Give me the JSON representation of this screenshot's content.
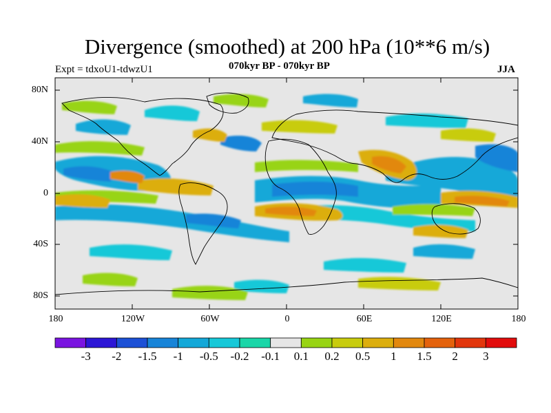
{
  "title": "Divergence (smoothed) at 200 hPa (10**6 m/s)",
  "experiment": "Expt = tdxoU1-tdwzU1",
  "subtitle": "070kyr BP - 070kyr BP",
  "season": "JJA",
  "lat_labels": [
    "80N",
    "40N",
    "0",
    "40S",
    "80S"
  ],
  "lon_labels": [
    "180",
    "120W",
    "60W",
    "0",
    "60E",
    "120E",
    "180"
  ],
  "colorbar": {
    "colors": [
      "#7a14e0",
      "#2c16d6",
      "#1c50d6",
      "#1784d8",
      "#13a8d8",
      "#16c8d8",
      "#1ad6a8",
      "#e6e6e6",
      "#98d414",
      "#c8cc0e",
      "#dcae0e",
      "#e2880e",
      "#e4620c",
      "#e2360c",
      "#e20c0c"
    ],
    "labels": [
      "-3",
      "-2",
      "-1.5",
      "-1",
      "-0.5",
      "-0.2",
      "-0.1",
      "0.1",
      "0.2",
      "0.5",
      "1",
      "1.5",
      "2",
      "3"
    ]
  }
}
